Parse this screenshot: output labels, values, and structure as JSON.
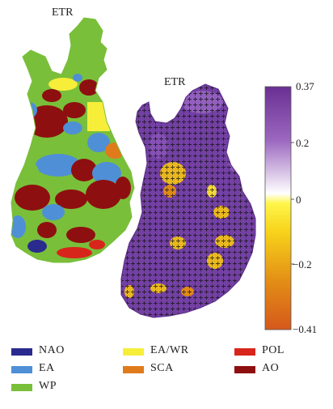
{
  "maps": {
    "left_title": "ETR",
    "right_title": "ETR"
  },
  "colorbar": {
    "ticks": [
      "0.37",
      "0.2",
      "0",
      "−0.2",
      "−0.41"
    ],
    "max": 0.37,
    "min": -0.41
  },
  "legend": [
    {
      "label": "NAO",
      "color": "#2b2a8f"
    },
    {
      "label": "EA/WR",
      "color": "#f7ee3a"
    },
    {
      "label": "POL",
      "color": "#d8251c"
    },
    {
      "label": "EA",
      "color": "#4f8fd6"
    },
    {
      "label": "SCA",
      "color": "#e07b1c"
    },
    {
      "label": "AO",
      "color": "#8e0f10"
    },
    {
      "label": "WP",
      "color": "#79bf3a"
    }
  ]
}
